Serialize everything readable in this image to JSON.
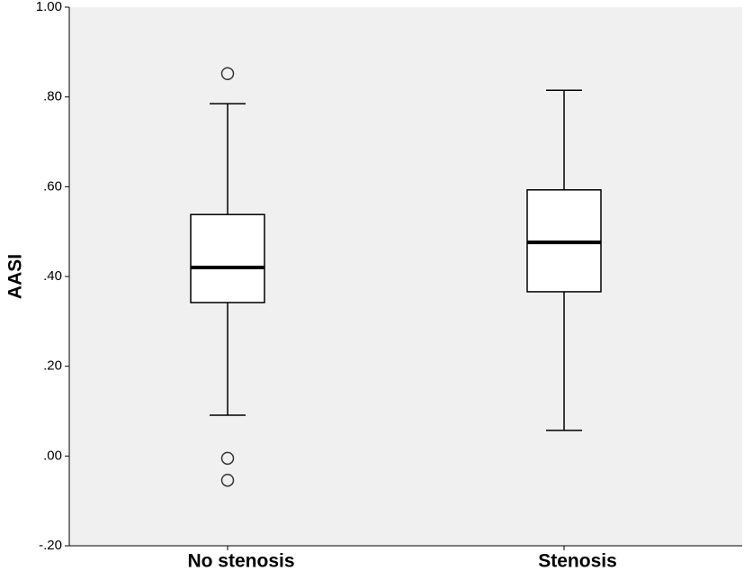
{
  "chart_data": {
    "type": "box",
    "y_label": "AASI",
    "categories": [
      "No stenosis",
      "Stenosis"
    ],
    "boxes": [
      {
        "whislo": 0.091,
        "q1": 0.342,
        "med": 0.42,
        "q3": 0.538,
        "whishi": 0.785,
        "fliers": [
          0.852,
          -0.005,
          -0.054
        ]
      },
      {
        "whislo": 0.057,
        "q1": 0.366,
        "med": 0.476,
        "q3": 0.593,
        "whishi": 0.815,
        "fliers": []
      }
    ],
    "ylim": [
      -0.2,
      1.0
    ],
    "yticks": [
      {
        "value": -0.2,
        "label": "-.20"
      },
      {
        "value": 0.0,
        "label": ".00"
      },
      {
        "value": 0.2,
        "label": ".20"
      },
      {
        "value": 0.4,
        "label": ".40"
      },
      {
        "value": 0.6,
        "label": ".60"
      },
      {
        "value": 0.8,
        "label": ".80"
      },
      {
        "value": 1.0,
        "label": "1.00"
      }
    ],
    "background": "#f0f0f0",
    "box_color": "#ffffff"
  }
}
